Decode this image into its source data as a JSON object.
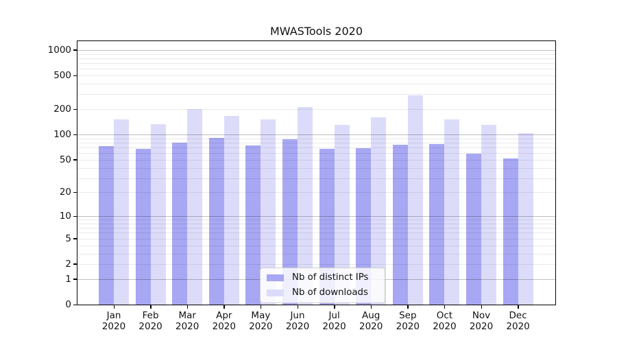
{
  "chart_data": {
    "type": "bar",
    "title": "MWASTools 2020",
    "categories": [
      "Jan",
      "Feb",
      "Mar",
      "Apr",
      "May",
      "Jun",
      "Jul",
      "Aug",
      "Sep",
      "Oct",
      "Nov",
      "Dec"
    ],
    "x_tick_year": "2020",
    "series": [
      {
        "name": "Nb of distinct IPs",
        "color": "#a7a7f3",
        "values": [
          73,
          67,
          80,
          92,
          74,
          88,
          68,
          69,
          75,
          77,
          59,
          52
        ]
      },
      {
        "name": "Nb of downloads",
        "color": "#dcdcfa",
        "values": [
          152,
          133,
          200,
          167,
          152,
          212,
          131,
          161,
          289,
          152,
          130,
          105
        ]
      }
    ],
    "xlabel": "",
    "ylabel": "",
    "yscale": "log1p",
    "yticks": [
      0,
      1,
      2,
      5,
      10,
      20,
      50,
      100,
      200,
      500,
      1000
    ],
    "ylim": [
      0,
      1270
    ],
    "grid": true,
    "grid_major_color": "#bfbfbf",
    "grid_minor_color": "#ebebeb",
    "legend_position": "lower center inside plot"
  }
}
